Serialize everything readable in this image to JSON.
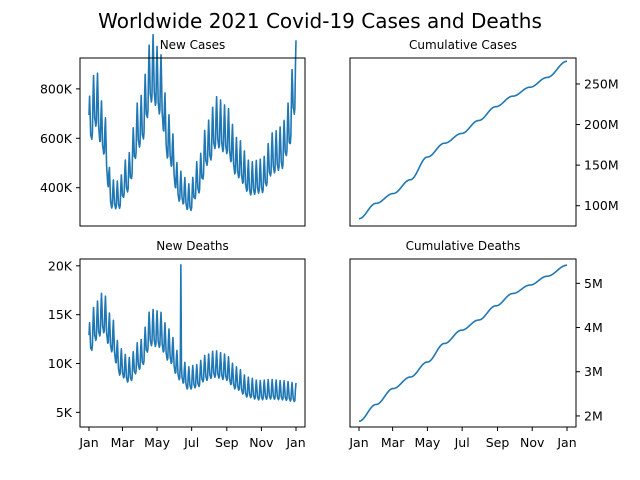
{
  "chart_data": {
    "suptitle": "Worldwide 2021 Covid-19 Cases and Deaths",
    "x_tick_labels": [
      "Jan",
      "Mar",
      "May",
      "Jul",
      "Sep",
      "Nov",
      "Jan"
    ],
    "x_tick_days": [
      0,
      59,
      120,
      181,
      243,
      304,
      365
    ],
    "panels": [
      {
        "key": "new_cases",
        "title": "New Cases",
        "type": "line",
        "y_axis_side": "left",
        "x_ticks_shown": false,
        "ylim": [
          245000,
          925000
        ],
        "y_ticks": [
          400000,
          600000,
          800000
        ],
        "y_tick_labels": [
          "400K",
          "600K",
          "800K"
        ],
        "trend": [
          [
            0,
            640000
          ],
          [
            12,
            735000
          ],
          [
            25,
            610000
          ],
          [
            40,
            360000
          ],
          [
            52,
            355000
          ],
          [
            66,
            430000
          ],
          [
            90,
            640000
          ],
          [
            112,
            850000
          ],
          [
            125,
            790000
          ],
          [
            140,
            580000
          ],
          [
            160,
            390000
          ],
          [
            178,
            345000
          ],
          [
            192,
            425000
          ],
          [
            210,
            560000
          ],
          [
            225,
            640000
          ],
          [
            242,
            610000
          ],
          [
            262,
            500000
          ],
          [
            285,
            420000
          ],
          [
            305,
            430000
          ],
          [
            325,
            520000
          ],
          [
            340,
            540000
          ],
          [
            352,
            620000
          ],
          [
            362,
            790000
          ],
          [
            365,
            830000
          ]
        ],
        "weekly_amplitude": 0.18,
        "series": [
          {
            "name": "",
            "values": "daily"
          }
        ]
      },
      {
        "key": "cumulative_cases",
        "title": "Cumulative Cases",
        "type": "line",
        "y_axis_side": "right",
        "x_ticks_shown": false,
        "ylim": [
          75000000,
          282000000
        ],
        "y_ticks": [
          100000000,
          150000000,
          200000000,
          250000000
        ],
        "y_tick_labels": [
          "100M",
          "150M",
          "200M",
          "250M"
        ],
        "trend": [
          [
            0,
            84000000
          ],
          [
            30,
            103000000
          ],
          [
            60,
            115000000
          ],
          [
            90,
            132000000
          ],
          [
            120,
            160000000
          ],
          [
            150,
            177000000
          ],
          [
            180,
            189000000
          ],
          [
            210,
            205000000
          ],
          [
            240,
            222000000
          ],
          [
            270,
            235000000
          ],
          [
            300,
            246000000
          ],
          [
            330,
            258000000
          ],
          [
            365,
            278000000
          ]
        ]
      },
      {
        "key": "new_deaths",
        "title": "New Deaths",
        "type": "line",
        "y_axis_side": "left",
        "x_ticks_shown": true,
        "ylim": [
          3500,
          20700
        ],
        "y_ticks": [
          5000,
          10000,
          15000,
          20000
        ],
        "y_tick_labels": [
          "5K",
          "10K",
          "15K",
          "20K"
        ],
        "trend": [
          [
            0,
            12000
          ],
          [
            12,
            13800
          ],
          [
            25,
            14700
          ],
          [
            40,
            12500
          ],
          [
            55,
            9800
          ],
          [
            70,
            9000
          ],
          [
            90,
            10500
          ],
          [
            110,
            13200
          ],
          [
            125,
            13000
          ],
          [
            140,
            11500
          ],
          [
            160,
            9300
          ],
          [
            175,
            8200
          ],
          [
            190,
            8400
          ],
          [
            205,
            9200
          ],
          [
            222,
            9600
          ],
          [
            240,
            9300
          ],
          [
            260,
            8200
          ],
          [
            280,
            7300
          ],
          [
            300,
            7000
          ],
          [
            320,
            7100
          ],
          [
            340,
            7000
          ],
          [
            365,
            6800
          ]
        ],
        "weekly_amplitude": 0.16,
        "spike": {
          "x": 162,
          "y": 20100
        },
        "series": [
          {
            "name": "",
            "values": "daily"
          }
        ]
      },
      {
        "key": "cumulative_deaths",
        "title": "Cumulative Deaths",
        "type": "line",
        "y_axis_side": "right",
        "x_ticks_shown": true,
        "ylim": [
          1750000,
          5550000
        ],
        "y_ticks": [
          2000000,
          3000000,
          4000000,
          5000000
        ],
        "y_tick_labels": [
          "2M",
          "3M",
          "4M",
          "5M"
        ],
        "trend": [
          [
            0,
            1880000
          ],
          [
            30,
            2260000
          ],
          [
            60,
            2620000
          ],
          [
            90,
            2880000
          ],
          [
            120,
            3220000
          ],
          [
            150,
            3640000
          ],
          [
            180,
            3940000
          ],
          [
            210,
            4170000
          ],
          [
            240,
            4490000
          ],
          [
            270,
            4770000
          ],
          [
            300,
            4960000
          ],
          [
            330,
            5160000
          ],
          [
            365,
            5410000
          ]
        ]
      }
    ]
  }
}
